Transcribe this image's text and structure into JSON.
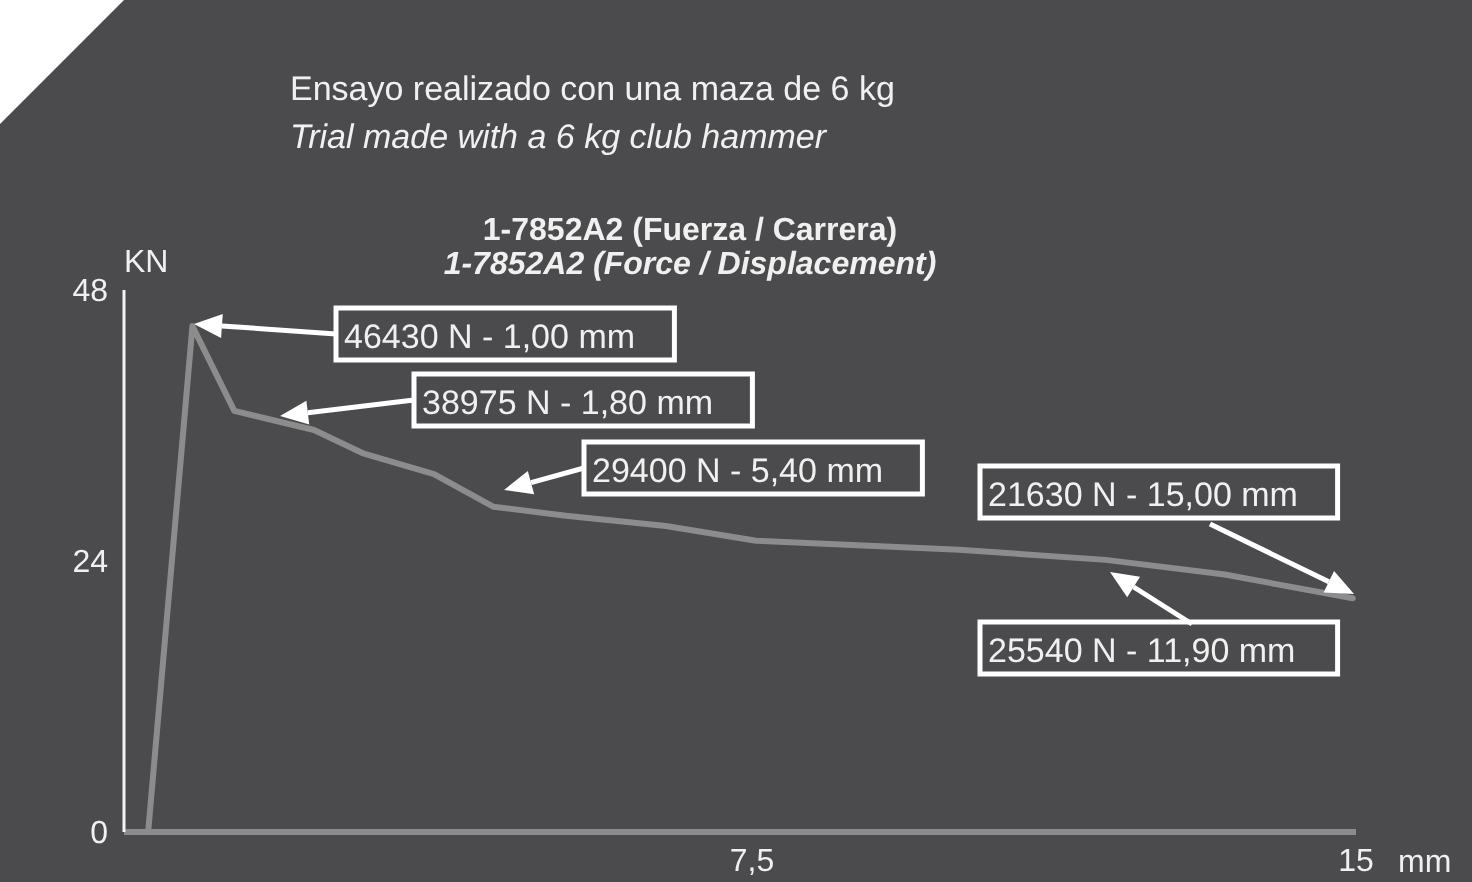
{
  "chart_data": {
    "type": "line",
    "title": "1-7852A2 (Fuerza / Carrera)\n1-7852A2 (Force / Displacement)",
    "subtitle": "Ensayo realizado con una maza de 6 kg\nTrial made with a 6 kg club hammer",
    "xlabel": "mm",
    "ylabel": "KN",
    "x": [
      0,
      0.55,
      1.07,
      2.06,
      2.68,
      3.55,
      4.29,
      5.19,
      6.43,
      7.55,
      10.07,
      11.89,
      13.37,
      14.96
    ],
    "series": [
      {
        "color": "#8c8c8c",
        "values": [
          0,
          44.8,
          37.3,
          35.6,
          33.5,
          31.7,
          28.8,
          28.0,
          27.1,
          25.8,
          25.0,
          24.1,
          22.8,
          20.7
        ]
      }
    ],
    "xlim": [
      -0.3,
      15
    ],
    "xticks": [
      {
        "value": 7.5,
        "label": "7,5"
      },
      15
    ],
    "ylim": [
      0,
      48
    ],
    "yticks": [
      0,
      24,
      48
    ],
    "annotations": [
      "46430 N - 1,00 mm",
      "38975 N - 1,80 mm",
      "29400 N - 5,40 mm",
      "21630 N - 15,00 mm",
      "25540 N - 11,90 mm"
    ],
    "grid": false,
    "legend": false,
    "marker": "none",
    "line_style": "solid"
  }
}
